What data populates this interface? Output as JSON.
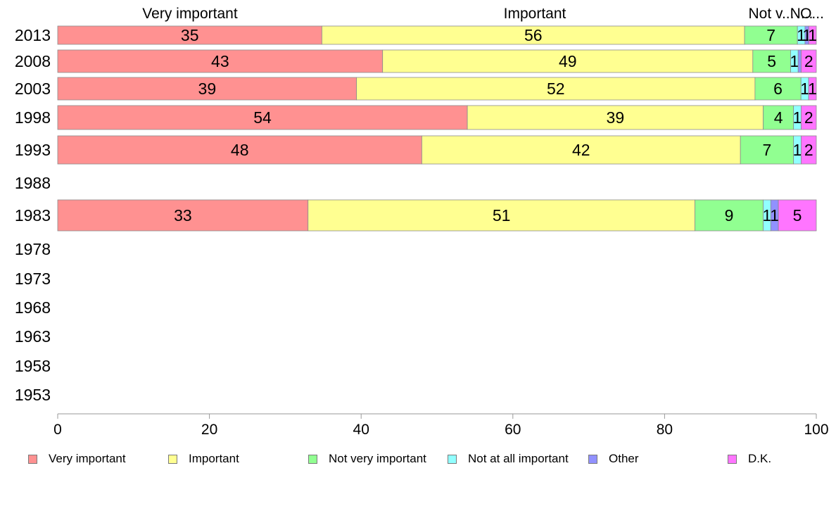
{
  "chart_data": {
    "type": "bar",
    "orientation": "horizontal",
    "stacked": true,
    "categories": [
      "2013",
      "2008",
      "2003",
      "1998",
      "1993",
      "1988",
      "1983",
      "1978",
      "1973",
      "1968",
      "1963",
      "1958",
      "1953"
    ],
    "series": [
      {
        "name": "Very important",
        "color": "#ff9191",
        "values": [
          35,
          43,
          39,
          54,
          48,
          null,
          33,
          null,
          null,
          null,
          null,
          null,
          null
        ]
      },
      {
        "name": "Important",
        "color": "#ffff91",
        "values": [
          56,
          49,
          52,
          39,
          42,
          null,
          51,
          null,
          null,
          null,
          null,
          null,
          null
        ]
      },
      {
        "name": "Not very important",
        "color": "#91ff91",
        "values": [
          7,
          5,
          6,
          4,
          7,
          null,
          9,
          null,
          null,
          null,
          null,
          null,
          null
        ]
      },
      {
        "name": "Not at all important",
        "color": "#91ffff",
        "values": [
          1,
          1,
          1,
          1,
          1,
          null,
          1,
          null,
          null,
          null,
          null,
          null,
          null
        ]
      },
      {
        "name": "Other",
        "color": "#9191ff",
        "values": [
          0.5,
          0.4,
          0,
          0,
          0,
          null,
          1,
          null,
          null,
          null,
          null,
          null,
          null
        ]
      },
      {
        "name": "D.K.",
        "color": "#ff75ff",
        "values": [
          1,
          2,
          1,
          2,
          2,
          null,
          5,
          null,
          null,
          null,
          null,
          null,
          null
        ]
      }
    ],
    "data_labels": [
      [
        "35",
        "56",
        "7",
        "1",
        "1",
        "1"
      ],
      [
        "43",
        "49",
        "5",
        "1",
        "",
        "2"
      ],
      [
        "39",
        "52",
        "6",
        "1",
        "",
        "1"
      ],
      [
        "54",
        "39",
        "4",
        "1",
        "",
        "2"
      ],
      [
        "48",
        "42",
        "7",
        "1",
        "",
        "2"
      ],
      null,
      [
        "33",
        "51",
        "9",
        "1",
        "1",
        "5"
      ],
      null,
      null,
      null,
      null,
      null,
      null
    ],
    "top_labels": [
      "Very important",
      "Important",
      "Not v...",
      "N...",
      "O..."
    ],
    "xlim": [
      0,
      100
    ],
    "xticks": [
      "0",
      "20",
      "40",
      "60",
      "80",
      "100"
    ],
    "grid": false,
    "legend_position": "bottom"
  }
}
